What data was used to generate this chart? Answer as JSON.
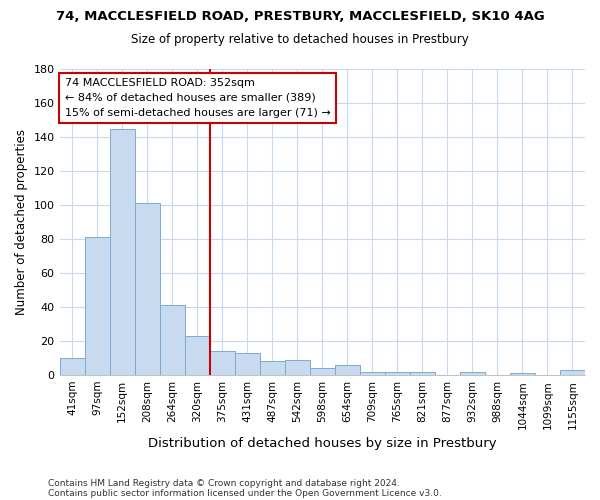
{
  "title1": "74, MACCLESFIELD ROAD, PRESTBURY, MACCLESFIELD, SK10 4AG",
  "title2": "Size of property relative to detached houses in Prestbury",
  "xlabel": "Distribution of detached houses by size in Prestbury",
  "ylabel": "Number of detached properties",
  "categories": [
    "41sqm",
    "97sqm",
    "152sqm",
    "208sqm",
    "264sqm",
    "320sqm",
    "375sqm",
    "431sqm",
    "487sqm",
    "542sqm",
    "598sqm",
    "654sqm",
    "709sqm",
    "765sqm",
    "821sqm",
    "877sqm",
    "932sqm",
    "988sqm",
    "1044sqm",
    "1099sqm",
    "1155sqm"
  ],
  "values": [
    10,
    81,
    145,
    101,
    41,
    23,
    14,
    13,
    8,
    9,
    4,
    6,
    2,
    2,
    2,
    0,
    2,
    0,
    1,
    0,
    3
  ],
  "bar_color": "#c8daf0",
  "bar_edge_color": "#7baad4",
  "vline_x": 6.0,
  "vline_color": "#cc0000",
  "annotation_text": "74 MACCLESFIELD ROAD: 352sqm\n← 84% of detached houses are smaller (389)\n15% of semi-detached houses are larger (71) →",
  "annotation_box_color": "white",
  "annotation_box_edge": "#cc0000",
  "ylim": [
    0,
    180
  ],
  "yticks": [
    0,
    20,
    40,
    60,
    80,
    100,
    120,
    140,
    160,
    180
  ],
  "footer1": "Contains HM Land Registry data © Crown copyright and database right 2024.",
  "footer2": "Contains public sector information licensed under the Open Government Licence v3.0.",
  "fig_bg_color": "#ffffff",
  "plot_bg_color": "#ffffff",
  "grid_color": "#c8d8ee"
}
